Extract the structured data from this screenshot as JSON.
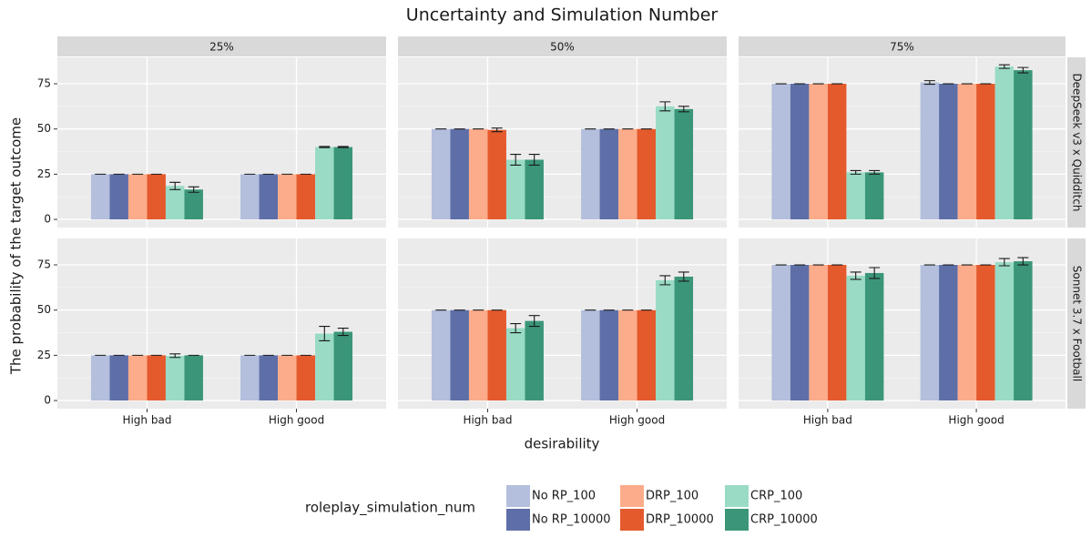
{
  "chart_data": {
    "type": "bar",
    "title": "Uncertainty and Simulation Number",
    "x_label": "desirability",
    "y_label": "The probability of the target outcome",
    "legend_title": "roleplay_simulation_num",
    "categories": [
      "High bad",
      "High good"
    ],
    "columns": [
      "25%",
      "50%",
      "75%"
    ],
    "rows": [
      "DeepSeek v3 x Quidditch",
      "Sonnet 3.7 x Football"
    ],
    "ylim": [
      -4.5,
      89.6
    ],
    "yticks": [
      0,
      25,
      50,
      75
    ],
    "grid": true,
    "series": [
      {
        "name": "No RP_100",
        "color": "#b3bfdc"
      },
      {
        "name": "No RP_10000",
        "color": "#5e6fa8"
      },
      {
        "name": "DRP_100",
        "color": "#fcac8a"
      },
      {
        "name": "DRP_10000",
        "color": "#e45a2d"
      },
      {
        "name": "CRP_100",
        "color": "#99dbc5"
      },
      {
        "name": "CRP_10000",
        "color": "#3b9679"
      }
    ],
    "panels": [
      [
        {
          "series": [
            {
              "values": [
                25,
                25
              ],
              "errors": [
                0,
                0
              ]
            },
            {
              "values": [
                25,
                25
              ],
              "errors": [
                0,
                0
              ]
            },
            {
              "values": [
                25,
                25
              ],
              "errors": [
                0,
                0
              ]
            },
            {
              "values": [
                25,
                25
              ],
              "errors": [
                0,
                0
              ]
            },
            {
              "values": [
                18.5,
                40
              ],
              "errors": [
                2,
                0.3
              ]
            },
            {
              "values": [
                16.5,
                40
              ],
              "errors": [
                1.5,
                0.3
              ]
            }
          ]
        },
        {
          "series": [
            {
              "values": [
                50,
                50
              ],
              "errors": [
                0,
                0
              ]
            },
            {
              "values": [
                50,
                50
              ],
              "errors": [
                0,
                0
              ]
            },
            {
              "values": [
                50,
                50
              ],
              "errors": [
                0,
                0
              ]
            },
            {
              "values": [
                49.5,
                50
              ],
              "errors": [
                1,
                0
              ]
            },
            {
              "values": [
                33,
                62.5
              ],
              "errors": [
                3,
                2.5
              ]
            },
            {
              "values": [
                33,
                61
              ],
              "errors": [
                3,
                1.5
              ]
            }
          ]
        },
        {
          "series": [
            {
              "values": [
                75,
                75.7
              ],
              "errors": [
                0,
                1
              ]
            },
            {
              "values": [
                75,
                75
              ],
              "errors": [
                0,
                0
              ]
            },
            {
              "values": [
                75,
                75
              ],
              "errors": [
                0,
                0
              ]
            },
            {
              "values": [
                75,
                75
              ],
              "errors": [
                0,
                0
              ]
            },
            {
              "values": [
                26,
                84.5
              ],
              "errors": [
                1,
                1
              ]
            },
            {
              "values": [
                26,
                82.5
              ],
              "errors": [
                1,
                1.5
              ]
            }
          ]
        }
      ],
      [
        {
          "series": [
            {
              "values": [
                25,
                25
              ],
              "errors": [
                0,
                0
              ]
            },
            {
              "values": [
                25,
                25
              ],
              "errors": [
                0,
                0
              ]
            },
            {
              "values": [
                25,
                25
              ],
              "errors": [
                0,
                0
              ]
            },
            {
              "values": [
                25,
                25
              ],
              "errors": [
                0,
                0
              ]
            },
            {
              "values": [
                24.8,
                37
              ],
              "errors": [
                1,
                4
              ]
            },
            {
              "values": [
                25,
                38
              ],
              "errors": [
                0,
                2
              ]
            }
          ]
        },
        {
          "series": [
            {
              "values": [
                50,
                50
              ],
              "errors": [
                0,
                0
              ]
            },
            {
              "values": [
                50,
                50
              ],
              "errors": [
                0,
                0
              ]
            },
            {
              "values": [
                50,
                50
              ],
              "errors": [
                0,
                0
              ]
            },
            {
              "values": [
                50,
                50
              ],
              "errors": [
                0,
                0
              ]
            },
            {
              "values": [
                40,
                66.5
              ],
              "errors": [
                2.5,
                2.5
              ]
            },
            {
              "values": [
                44,
                68.5
              ],
              "errors": [
                3,
                2.5
              ]
            }
          ]
        },
        {
          "series": [
            {
              "values": [
                75,
                75
              ],
              "errors": [
                0,
                0
              ]
            },
            {
              "values": [
                75,
                75
              ],
              "errors": [
                0,
                0
              ]
            },
            {
              "values": [
                75,
                75
              ],
              "errors": [
                0,
                0
              ]
            },
            {
              "values": [
                75,
                75
              ],
              "errors": [
                0,
                0
              ]
            },
            {
              "values": [
                69,
                76.5
              ],
              "errors": [
                2,
                2
              ]
            },
            {
              "values": [
                70.5,
                77
              ],
              "errors": [
                3,
                2
              ]
            }
          ]
        }
      ]
    ]
  }
}
